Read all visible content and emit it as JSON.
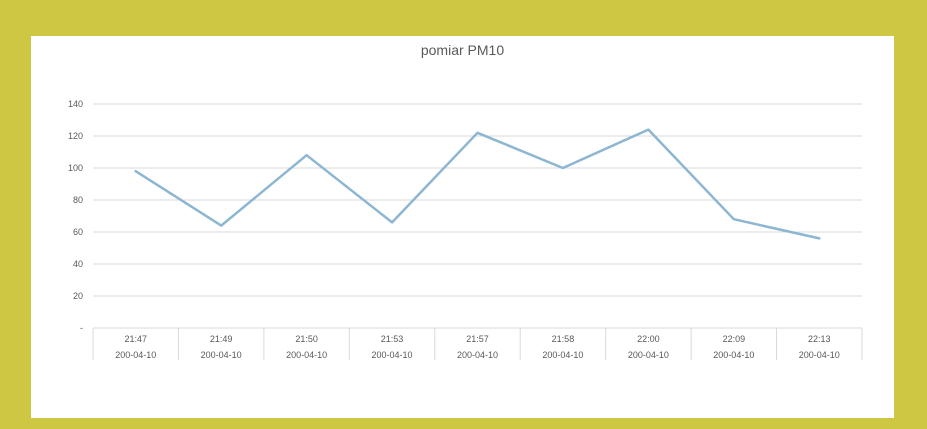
{
  "chart_data": {
    "type": "line",
    "title": "pomiar PM10",
    "xlabel": "",
    "ylabel": "",
    "ylim": [
      0,
      140
    ],
    "yticks": [
      0,
      20,
      40,
      60,
      80,
      100,
      120,
      140
    ],
    "yticks_labels": [
      "-",
      "20",
      "40",
      "60",
      "80",
      "100",
      "120",
      "140"
    ],
    "categories": [
      {
        "time": "21:47",
        "date": "200-04-10"
      },
      {
        "time": "21:49",
        "date": "200-04-10"
      },
      {
        "time": "21:50",
        "date": "200-04-10"
      },
      {
        "time": "21:53",
        "date": "200-04-10"
      },
      {
        "time": "21:57",
        "date": "200-04-10"
      },
      {
        "time": "21:58",
        "date": "200-04-10"
      },
      {
        "time": "22:00",
        "date": "200-04-10"
      },
      {
        "time": "22:09",
        "date": "200-04-10"
      },
      {
        "time": "22:13",
        "date": "200-04-10"
      }
    ],
    "series": [
      {
        "values": [
          98,
          64,
          108,
          66,
          122,
          100,
          124,
          68,
          56
        ],
        "color": "#8db6d2"
      }
    ],
    "grid": true,
    "legend": "none"
  },
  "colors": {
    "background": "#cdc744",
    "card": "#ffffff",
    "line": "#8db6d2",
    "grid": "#d9d9d9",
    "text": "#595959"
  }
}
